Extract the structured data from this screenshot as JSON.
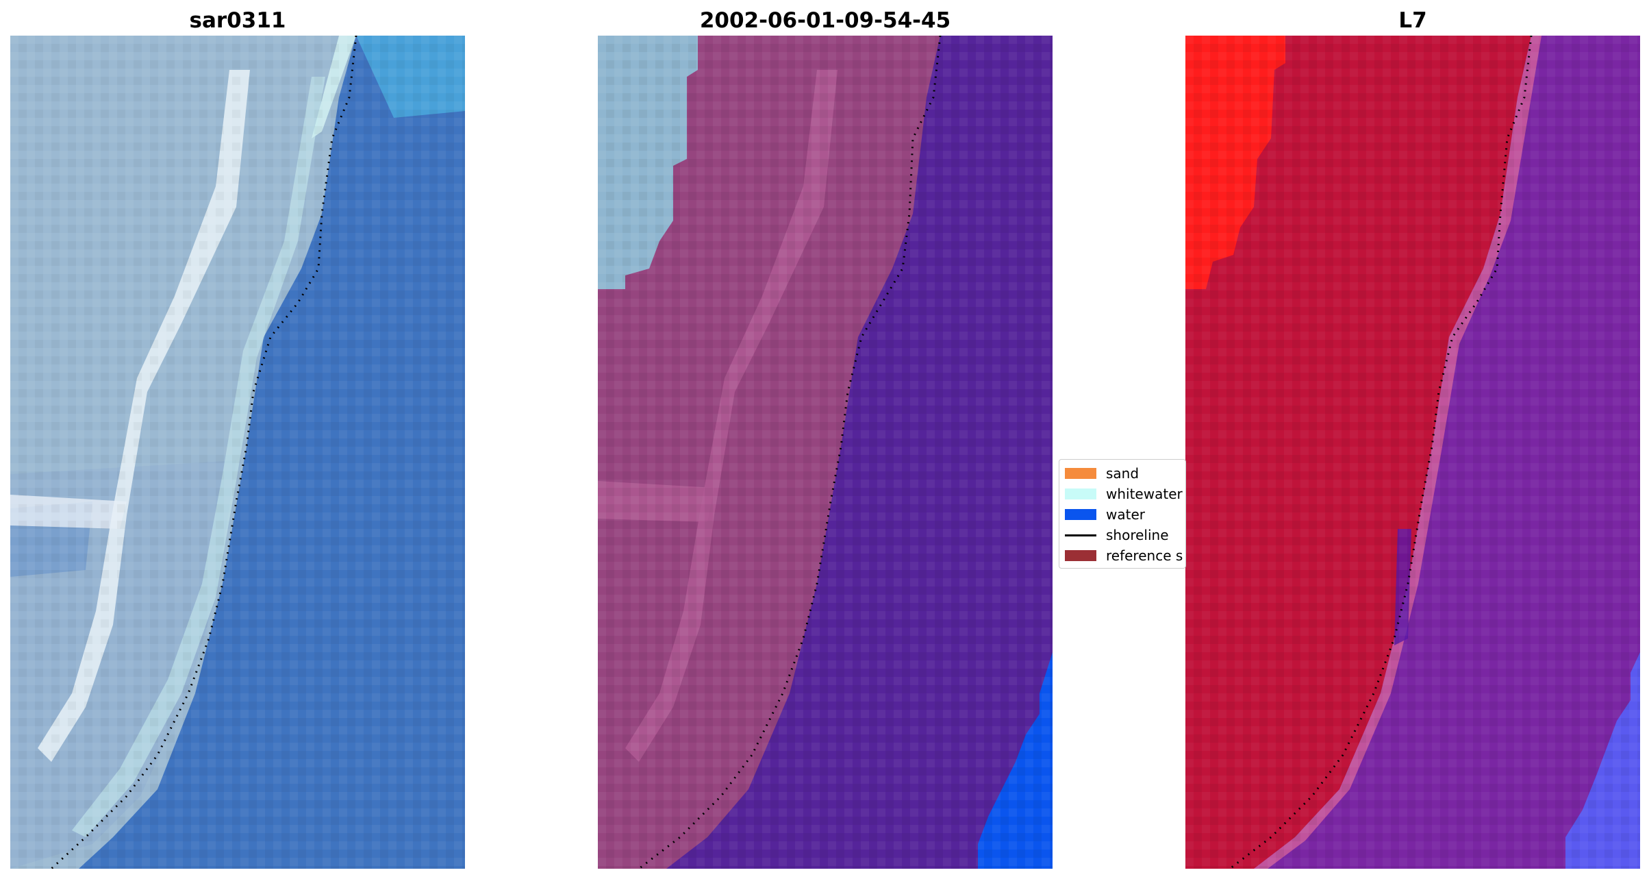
{
  "panels": [
    {
      "title": "sar0311"
    },
    {
      "title": "2002-06-01-09-54-45"
    },
    {
      "title": "L7"
    }
  ],
  "legend": {
    "items": [
      {
        "label": "sand",
        "color": "#f58b3c",
        "kind": "patch"
      },
      {
        "label": "whitewater",
        "color": "#c8fbf8",
        "kind": "patch"
      },
      {
        "label": "water",
        "color": "#0a55ee",
        "kind": "patch"
      },
      {
        "label": "shoreline",
        "color": "#000000",
        "kind": "line"
      },
      {
        "label": "reference s",
        "color": "#9b2f35",
        "kind": "patch"
      }
    ]
  },
  "colors": {
    "rgb_land": "#9bb9d2",
    "rgb_water": "#3f74c0",
    "rgb_bright_trail": "#e8f1f7",
    "class_land": "#96457f",
    "class_land_light": "#b05a94",
    "class_whitewater_area": "#8fb6d0",
    "class_water": "#55249a",
    "class_water_blue": "#0a55ee",
    "index_land": "#c0133a",
    "index_land_bright": "#ff1d1d",
    "index_water": "#7a26a3",
    "index_water_blue": "#5a5af0",
    "shoreline": "#000000"
  }
}
